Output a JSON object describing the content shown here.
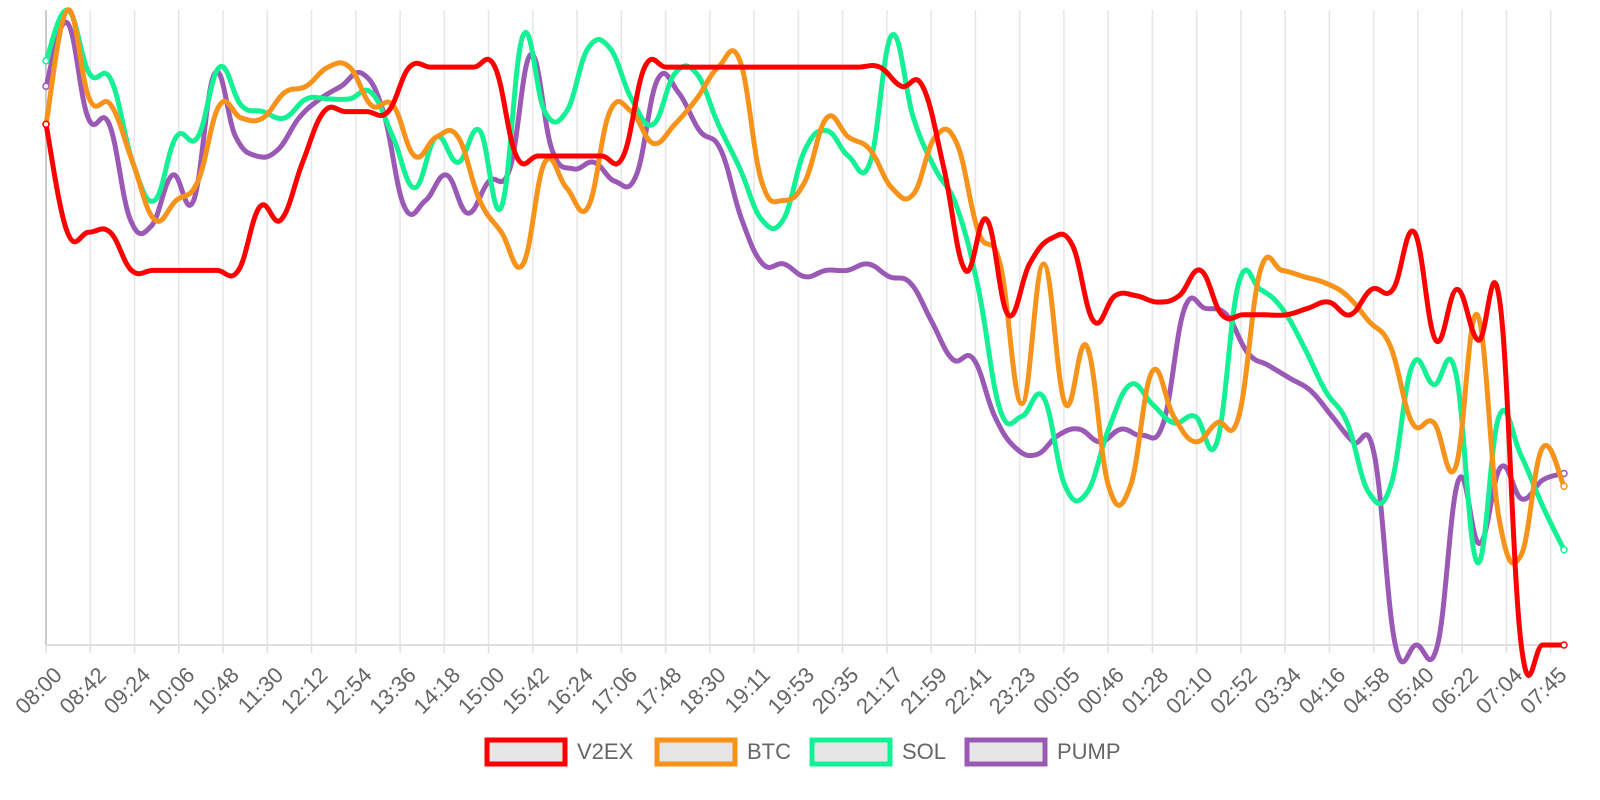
{
  "chart_data": {
    "type": "line",
    "title": "",
    "xlabel": "",
    "ylabel": "",
    "grid": true,
    "legend": "bottom",
    "ylim": [
      0,
      100
    ],
    "x_tick_labels": [
      "08:00",
      "08:42",
      "09:24",
      "10:06",
      "10:48",
      "11:30",
      "12:12",
      "12:54",
      "13:36",
      "14:18",
      "15:00",
      "15:42",
      "16:24",
      "17:06",
      "17:48",
      "18:30",
      "19:11",
      "19:53",
      "20:35",
      "21:17",
      "21:59",
      "22:41",
      "23:23",
      "00:05",
      "00:46",
      "01:28",
      "02:10",
      "02:52",
      "03:34",
      "04:16",
      "04:58",
      "05:40",
      "06:22",
      "07:04",
      "07:45"
    ],
    "series": [
      {
        "name": "V2EX",
        "color": "#ff0000",
        "values": [
          82,
          65,
          65,
          65,
          59,
          59,
          59,
          59,
          59,
          59,
          69,
          67,
          76,
          84,
          84,
          84,
          84,
          91,
          91,
          91,
          91,
          91,
          77,
          77,
          77,
          77,
          77,
          77,
          91,
          91,
          91,
          91,
          91,
          91,
          91,
          91,
          91,
          91,
          91,
          91,
          88,
          88,
          75,
          59,
          67,
          52,
          60,
          64,
          63,
          51,
          55,
          55,
          54,
          55,
          59,
          52,
          52,
          52,
          52,
          53,
          54,
          52,
          56,
          56,
          65,
          48,
          56,
          48,
          54,
          0,
          0,
          0
        ]
      },
      {
        "name": "BTC",
        "color": "#f7931a",
        "values": [
          82,
          100,
          86,
          85,
          76,
          67,
          70,
          73,
          85,
          83,
          83,
          87,
          88,
          91,
          91,
          85,
          85,
          77,
          80,
          80,
          70,
          65,
          60,
          76,
          72,
          69,
          84,
          84,
          79,
          82,
          86,
          91,
          92,
          73,
          70,
          73,
          83,
          80,
          78,
          72,
          71,
          80,
          79,
          65,
          60,
          38,
          60,
          38,
          47,
          25,
          25,
          43,
          36,
          32,
          35,
          36,
          59,
          59,
          58,
          57,
          55,
          51,
          47,
          35,
          35,
          28,
          52,
          20,
          14,
          31,
          25
        ]
      },
      {
        "name": "SOL",
        "color": "#14f195",
        "values": [
          92,
          100,
          90,
          89,
          76,
          70,
          80,
          80,
          91,
          85,
          84,
          83,
          86,
          86,
          86,
          87,
          80,
          72,
          80,
          76,
          81,
          69,
          96,
          84,
          84,
          94,
          94,
          86,
          82,
          90,
          90,
          82,
          75,
          67,
          67,
          78,
          81,
          77,
          76,
          96,
          83,
          75,
          69,
          56,
          37,
          36,
          39,
          25,
          24,
          34,
          41,
          38,
          35,
          36,
          32,
          57,
          56,
          53,
          47,
          40,
          35,
          24,
          25,
          44,
          41,
          43,
          13,
          36,
          30,
          22,
          15
        ]
      },
      {
        "name": "PUMP",
        "color": "#9b59b6",
        "values": [
          88,
          98,
          83,
          82,
          67,
          66,
          74,
          70,
          90,
          80,
          77,
          78,
          83,
          86,
          88,
          90,
          84,
          69,
          70,
          74,
          68,
          73,
          75,
          93,
          78,
          75,
          76,
          73,
          74,
          89,
          87,
          81,
          78,
          67,
          60,
          60,
          58,
          59,
          59,
          60,
          58,
          57,
          51,
          45,
          45,
          36,
          31,
          30,
          33,
          34,
          32,
          34,
          33,
          35,
          53,
          53,
          52,
          46,
          44,
          42,
          40,
          36,
          32,
          30,
          0,
          0,
          0,
          26,
          16,
          28,
          23,
          26,
          27
        ]
      }
    ]
  }
}
